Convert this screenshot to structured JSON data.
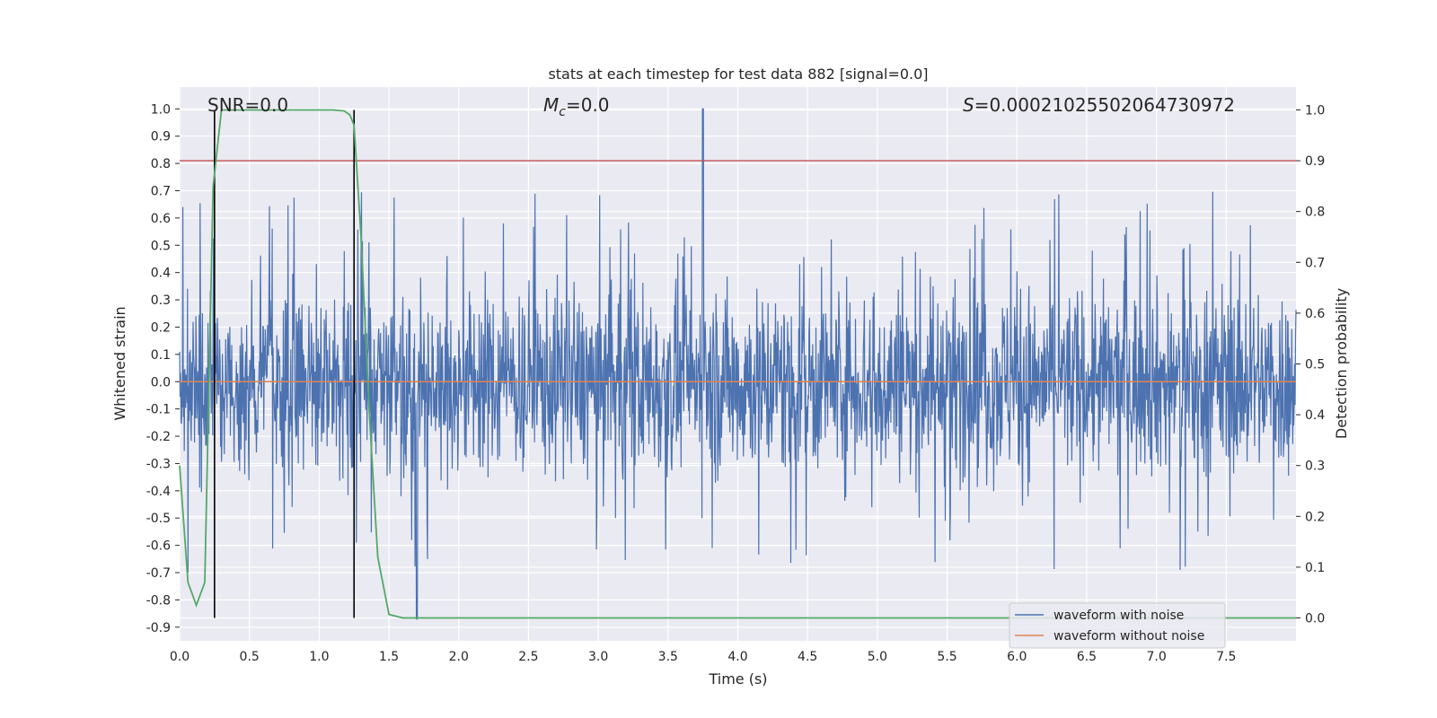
{
  "chart_data": {
    "type": "line",
    "title": "stats at each timestep for test data 882 [signal=0.0]",
    "xlabel": "Time (s)",
    "ylabel": "Whitened strain",
    "ylabel_right": "Detection probability",
    "xlim": [
      0.0,
      8.0
    ],
    "ylim": [
      -0.95,
      1.08
    ],
    "ylim_right": [
      -0.045,
      1.045
    ],
    "x_ticks": [
      "0.0",
      "0.5",
      "1.0",
      "1.5",
      "2.0",
      "2.5",
      "3.0",
      "3.5",
      "4.0",
      "4.5",
      "5.0",
      "5.5",
      "6.0",
      "6.5",
      "7.0",
      "7.5"
    ],
    "y_ticks": [
      "1.0",
      "0.9",
      "0.8",
      "0.7",
      "0.6",
      "0.5",
      "0.4",
      "0.3",
      "0.2",
      "0.1",
      "0.0",
      "-0.1",
      "-0.2",
      "-0.3",
      "-0.4",
      "-0.5",
      "-0.6",
      "-0.7",
      "-0.8",
      "-0.9"
    ],
    "y_ticks_right": [
      "1.0",
      "0.9",
      "0.8",
      "0.7",
      "0.6",
      "0.5",
      "0.4",
      "0.3",
      "0.2",
      "0.1",
      "0.0"
    ],
    "annotations": {
      "snr": "SNR=0.0",
      "mc_symbol": "M",
      "mc_sub": "c",
      "mc_value": "=0.0",
      "s_symbol": "S",
      "s_value": "=0.00021025502064730972"
    },
    "legend": [
      "waveform with noise",
      "waveform without noise"
    ],
    "colors": {
      "noise": "#4c72b0",
      "clean": "#dd8452",
      "probability": "#55a868",
      "threshold": "#c44e52",
      "vlines": "#000000",
      "axes_bg": "#eaeaf2",
      "grid": "#ffffff"
    },
    "series": [
      {
        "name": "waveform with noise",
        "noise_amplitude_approx": 0.35,
        "max_spike": 1.0,
        "min_spike": -0.87
      },
      {
        "name": "waveform without noise",
        "x": [
          0.0,
          8.0
        ],
        "y": [
          0.0,
          0.0
        ]
      },
      {
        "name": "detection probability",
        "axis": "right",
        "x": [
          0.0,
          0.06,
          0.12,
          0.18,
          0.24,
          0.3,
          0.36,
          0.5,
          0.8,
          1.0,
          1.1,
          1.18,
          1.22,
          1.25,
          1.3,
          1.36,
          1.42,
          1.5,
          1.6,
          2.0,
          3.0,
          4.0,
          5.0,
          6.0,
          7.0,
          8.0
        ],
        "y": [
          0.3,
          0.07,
          0.025,
          0.07,
          0.85,
          1.0,
          1.0,
          1.0,
          1.0,
          1.0,
          1.0,
          0.998,
          0.99,
          0.97,
          0.75,
          0.4,
          0.12,
          0.007,
          0.0,
          0.0,
          0.0,
          0.0,
          0.0,
          0.0,
          0.0,
          0.0
        ]
      },
      {
        "name": "threshold",
        "axis": "right",
        "y": 0.9
      }
    ],
    "vlines": [
      0.25,
      1.25
    ]
  }
}
